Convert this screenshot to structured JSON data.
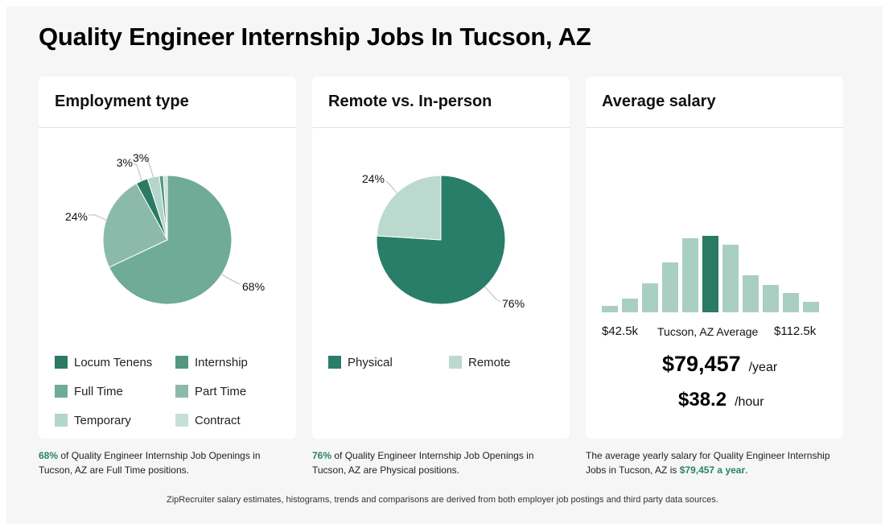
{
  "page": {
    "title": "Quality Engineer Internship Jobs In Tucson, AZ"
  },
  "colors": {
    "locum_tenens": "#2b7a63",
    "internship": "#53977f",
    "full_time": "#6fab97",
    "part_time": "#8cbaaa",
    "temporary": "#b4d5c9",
    "contract": "#c6e0d6",
    "physical": "#297e69",
    "remote": "#bcd9cf",
    "hist_bar": "#a9cfc2",
    "hist_highlight": "#2b7a63",
    "highlight_text": "#2a8466"
  },
  "employment": {
    "title": "Employment type",
    "caption_pct": "68%",
    "caption_rest": " of Quality Engineer Internship Job Openings in Tucson, AZ are Full Time positions.",
    "legend": [
      {
        "label": "Locum Tenens",
        "color": "#2b7a63"
      },
      {
        "label": "Internship",
        "color": "#53977f"
      },
      {
        "label": "Full Time",
        "color": "#6fab97"
      },
      {
        "label": "Part Time",
        "color": "#8cbaaa"
      },
      {
        "label": "Temporary",
        "color": "#b4d5c9"
      },
      {
        "label": "Contract",
        "color": "#c6e0d6"
      }
    ]
  },
  "remote": {
    "title": "Remote vs. In-person",
    "caption_pct": "76%",
    "caption_rest": " of Quality Engineer Internship Job Openings in Tucson, AZ are Physical positions.",
    "legend": [
      {
        "label": "Physical",
        "color": "#297e69"
      },
      {
        "label": "Remote",
        "color": "#bcd9cf"
      }
    ]
  },
  "salary": {
    "title": "Average salary",
    "min_label": "$42.5k",
    "center_label": "Tucson, AZ Average",
    "max_label": "$112.5k",
    "yearly": "$79,457",
    "yearly_unit": "/year",
    "hourly": "$38.2",
    "hourly_unit": "/hour",
    "caption_start": "The average yearly salary for Quality Engineer Internship Jobs in Tucson, AZ is ",
    "caption_hl": "$79,457 a year",
    "caption_end": "."
  },
  "footnote": "ZipRecruiter salary estimates, histograms, trends and comparisons are derived from both employer job postings and third party data sources.",
  "chart_data": [
    {
      "type": "pie",
      "title": "Employment type",
      "categories": [
        "Full Time",
        "Part Time",
        "Locum Tenens",
        "Temporary",
        "Internship",
        "Contract"
      ],
      "values": [
        68,
        24,
        3,
        3,
        1,
        1
      ],
      "labels": [
        "68%",
        "24%",
        "3%",
        "3%",
        "",
        ""
      ],
      "colors": [
        "#6fab97",
        "#8cbaaa",
        "#2b7a63",
        "#b4d5c9",
        "#53977f",
        "#c6e0d6"
      ]
    },
    {
      "type": "pie",
      "title": "Remote vs. In-person",
      "categories": [
        "Physical",
        "Remote"
      ],
      "values": [
        76,
        24
      ],
      "labels": [
        "76%",
        "24%"
      ],
      "colors": [
        "#297e69",
        "#bcd9cf"
      ]
    },
    {
      "type": "bar",
      "title": "Average salary",
      "x_range": [
        "$42.5k",
        "$112.5k"
      ],
      "values": [
        8,
        17,
        36,
        62,
        92,
        95,
        84,
        46,
        34,
        24,
        13
      ],
      "highlight_index": 5
    }
  ]
}
